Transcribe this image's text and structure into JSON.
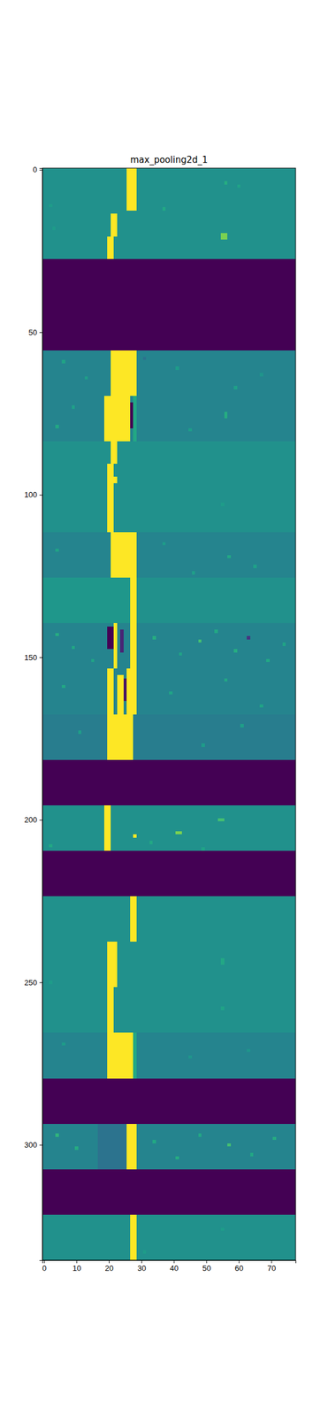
{
  "chart_data": {
    "type": "heatmap",
    "title": "max_pooling2d_1",
    "color": "viridis",
    "xlim": [
      -0.5,
      77.5
    ],
    "ylim": [
      335.5,
      -0.5
    ],
    "xticks": [
      0,
      10,
      20,
      30,
      40,
      50,
      60,
      70
    ],
    "yticks": [
      0,
      50,
      100,
      150,
      200,
      250,
      300
    ],
    "color_range": [
      0,
      1
    ],
    "cells": [
      [
        -0.5,
        77.5,
        -0.5,
        13.5,
        0.5
      ],
      [
        25.5,
        28.5,
        -0.5,
        12.5,
        1
      ],
      [
        55.5,
        56.5,
        3.5,
        4.5,
        0.62
      ],
      [
        36.5,
        37.5,
        11.5,
        12.5,
        0.6
      ],
      [
        1.5,
        2.5,
        10.5,
        11.5,
        0.55
      ],
      [
        59.5,
        60.5,
        4.5,
        5.5,
        0.58
      ],
      [
        -0.5,
        77.5,
        13.5,
        27.5,
        0.5
      ],
      [
        20.5,
        22.5,
        13.5,
        20.5,
        1
      ],
      [
        19.5,
        21.5,
        20.5,
        27.5,
        1
      ],
      [
        54.5,
        56.5,
        19.5,
        21.5,
        0.8
      ],
      [
        2.5,
        3.5,
        17.5,
        18.5,
        0.55
      ],
      [
        -0.5,
        77.5,
        27.5,
        55.5,
        0
      ],
      [
        -0.5,
        77.5,
        55.5,
        69.5,
        0.45
      ],
      [
        20.5,
        28.5,
        55.5,
        69.5,
        1
      ],
      [
        5.5,
        6.5,
        58.5,
        59.5,
        0.58
      ],
      [
        12.5,
        13.5,
        63.5,
        64.5,
        0.56
      ],
      [
        40.5,
        41.5,
        60.5,
        61.5,
        0.55
      ],
      [
        58.5,
        59.5,
        66.5,
        67.5,
        0.57
      ],
      [
        30.5,
        31.5,
        57.5,
        58.5,
        0.38
      ],
      [
        66.5,
        67.5,
        62.5,
        63.5,
        0.52
      ],
      [
        -0.5,
        77.5,
        69.5,
        83.5,
        0.45
      ],
      [
        18.5,
        26.5,
        69.5,
        83.5,
        1
      ],
      [
        26.5,
        27.5,
        71.5,
        79.5,
        0
      ],
      [
        27.5,
        28.5,
        69.5,
        83.5,
        0.6
      ],
      [
        55.5,
        56.5,
        74.5,
        76.5,
        0.62
      ],
      [
        8.5,
        9.5,
        72.5,
        73.5,
        0.57
      ],
      [
        44.5,
        45.5,
        79.5,
        80.5,
        0.55
      ],
      [
        3.5,
        4.5,
        78.5,
        79.5,
        0.6
      ],
      [
        -0.5,
        77.5,
        83.5,
        97.5,
        0.5
      ],
      [
        20.5,
        22.5,
        83.5,
        90.5,
        1
      ],
      [
        19.5,
        21.5,
        90.5,
        97.5,
        1
      ],
      [
        21.5,
        22.5,
        94.5,
        96.5,
        1
      ],
      [
        -0.5,
        77.5,
        97.5,
        111.5,
        0.5
      ],
      [
        19.5,
        21.5,
        97.5,
        111.5,
        1
      ],
      [
        54.5,
        55.5,
        102.5,
        103.5,
        0.55
      ],
      [
        -0.5,
        77.5,
        111.5,
        125.5,
        0.45
      ],
      [
        20.5,
        28.5,
        111.5,
        125.5,
        1
      ],
      [
        3.5,
        4.5,
        116.5,
        117.5,
        0.58
      ],
      [
        36.5,
        37.5,
        114.5,
        115.5,
        0.55
      ],
      [
        56.5,
        57.5,
        118.5,
        119.5,
        0.6
      ],
      [
        64.5,
        65.5,
        121.5,
        122.5,
        0.57
      ],
      [
        45.5,
        46.5,
        123.5,
        124.5,
        0.56
      ],
      [
        -0.5,
        77.5,
        125.5,
        139.5,
        0.5
      ],
      [
        -0.5,
        26.5,
        125.5,
        139.5,
        0.53
      ],
      [
        26.5,
        28.5,
        125.5,
        139.5,
        1
      ],
      [
        -0.5,
        77.5,
        139.5,
        153.5,
        0.45
      ],
      [
        19.5,
        21.5,
        140.5,
        147.5,
        0
      ],
      [
        21.5,
        22.5,
        139.5,
        153.5,
        1
      ],
      [
        23.5,
        24.5,
        141.5,
        148.5,
        0.1
      ],
      [
        26.5,
        28.5,
        139.5,
        153.5,
        1
      ],
      [
        3.5,
        4.5,
        142.5,
        143.5,
        0.62
      ],
      [
        8.5,
        9.5,
        146.5,
        147.5,
        0.6
      ],
      [
        14.5,
        15.5,
        150.5,
        151.5,
        0.58
      ],
      [
        33.5,
        34.5,
        143.5,
        144.5,
        0.62
      ],
      [
        41.5,
        42.5,
        148.5,
        149.5,
        0.58
      ],
      [
        47.5,
        48.5,
        144.5,
        145.5,
        0.7
      ],
      [
        52.5,
        53.5,
        141.5,
        142.5,
        0.6
      ],
      [
        58.5,
        59.5,
        147.5,
        148.5,
        0.62
      ],
      [
        62.5,
        63.5,
        143.5,
        144.5,
        0.15
      ],
      [
        68.5,
        69.5,
        150.5,
        151.5,
        0.6
      ],
      [
        73.5,
        74.5,
        145.5,
        146.5,
        0.58
      ],
      [
        -0.5,
        77.5,
        153.5,
        167.5,
        0.45
      ],
      [
        19.5,
        21.5,
        153.5,
        167.5,
        1
      ],
      [
        22.5,
        24.5,
        155.5,
        167.5,
        1
      ],
      [
        25.5,
        28.5,
        153.5,
        167.5,
        1
      ],
      [
        24.5,
        25.5,
        156.5,
        163.5,
        0.05
      ],
      [
        5.5,
        6.5,
        158.5,
        159.5,
        0.6
      ],
      [
        38.5,
        39.5,
        160.5,
        161.5,
        0.58
      ],
      [
        55.5,
        56.5,
        156.5,
        157.5,
        0.6
      ],
      [
        66.5,
        67.5,
        164.5,
        165.5,
        0.58
      ],
      [
        -0.5,
        77.5,
        167.5,
        181.5,
        0.42
      ],
      [
        19.5,
        27.5,
        167.5,
        181.5,
        1
      ],
      [
        10.5,
        11.5,
        172.5,
        173.5,
        0.56
      ],
      [
        48.5,
        49.5,
        176.5,
        177.5,
        0.55
      ],
      [
        60.5,
        61.5,
        170.5,
        171.5,
        0.56
      ],
      [
        -0.5,
        77.5,
        181.5,
        195.5,
        0
      ],
      [
        -0.5,
        77.5,
        195.5,
        209.5,
        0.5
      ],
      [
        18.5,
        20.5,
        195.5,
        209.5,
        1
      ],
      [
        27.5,
        28.5,
        204.5,
        205.5,
        1
      ],
      [
        40.5,
        42.5,
        203.5,
        204.5,
        0.8
      ],
      [
        53.5,
        55.5,
        199.5,
        200.5,
        0.7
      ],
      [
        1.5,
        2.5,
        207.5,
        208.5,
        0.6
      ],
      [
        32.5,
        33.5,
        206.5,
        207.5,
        0.6
      ],
      [
        48.5,
        49.5,
        208.5,
        209.5,
        0.58
      ],
      [
        -0.5,
        77.5,
        209.5,
        223.5,
        0
      ],
      [
        -0.5,
        77.5,
        223.5,
        237.5,
        0.5
      ],
      [
        26.5,
        28.5,
        223.5,
        237.5,
        1
      ],
      [
        -0.5,
        77.5,
        237.5,
        251.5,
        0.5
      ],
      [
        19.5,
        22.5,
        237.5,
        251.5,
        1
      ],
      [
        54.5,
        55.5,
        242.5,
        244.5,
        0.6
      ],
      [
        1.5,
        2.5,
        249.5,
        250.5,
        0.55
      ],
      [
        -0.5,
        77.5,
        251.5,
        265.5,
        0.5
      ],
      [
        19.5,
        21.5,
        251.5,
        265.5,
        1
      ],
      [
        54.5,
        55.5,
        257.5,
        258.5,
        0.58
      ],
      [
        -0.5,
        77.5,
        265.5,
        279.5,
        0.45
      ],
      [
        19.5,
        27.5,
        265.5,
        279.5,
        1
      ],
      [
        27.5,
        28.5,
        265.5,
        279.5,
        0.6
      ],
      [
        5.5,
        6.5,
        268.5,
        269.5,
        0.55
      ],
      [
        44.5,
        45.5,
        272.5,
        273.5,
        0.52
      ],
      [
        62.5,
        63.5,
        270.5,
        271.5,
        0.52
      ],
      [
        -0.5,
        77.5,
        279.5,
        293.5,
        0
      ],
      [
        -0.5,
        77.5,
        293.5,
        307.5,
        0.45
      ],
      [
        16.5,
        25.5,
        293.5,
        307.5,
        0.38
      ],
      [
        25.5,
        28.5,
        293.5,
        307.5,
        1
      ],
      [
        3.5,
        4.5,
        296.5,
        297.5,
        0.65
      ],
      [
        9.5,
        10.5,
        300.5,
        301.5,
        0.62
      ],
      [
        33.5,
        34.5,
        298.5,
        299.5,
        0.6
      ],
      [
        40.5,
        41.5,
        303.5,
        304.5,
        0.62
      ],
      [
        47.5,
        48.5,
        296.5,
        297.5,
        0.6
      ],
      [
        56.5,
        57.5,
        299.5,
        300.5,
        0.7
      ],
      [
        63.5,
        64.5,
        302.5,
        303.5,
        0.6
      ],
      [
        70.5,
        71.5,
        297.5,
        298.5,
        0.62
      ],
      [
        -0.5,
        77.5,
        307.5,
        321.5,
        0
      ],
      [
        -0.5,
        77.5,
        321.5,
        335.5,
        0.5
      ],
      [
        26.5,
        28.5,
        321.5,
        335.5,
        1
      ],
      [
        54.5,
        55.5,
        325.5,
        326.5,
        0.55
      ],
      [
        30.5,
        31.5,
        332.5,
        333.5,
        0.55
      ]
    ]
  }
}
